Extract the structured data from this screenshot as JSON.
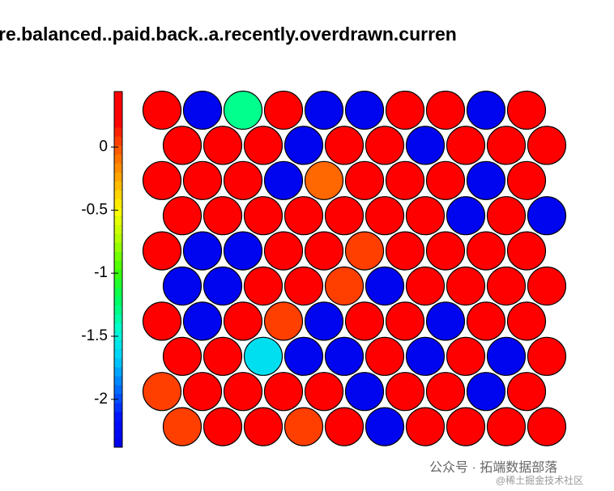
{
  "chart_data": {
    "type": "hexgrid",
    "title": "re.balanced..paid.back..a.recently.overdrawn.curren",
    "values": [
      [
        0.3,
        -2.3,
        -1.3,
        0.3,
        -2.3,
        -2.3,
        0.3,
        0.3,
        -2.3,
        0.3
      ],
      [
        0.3,
        0.3,
        0.3,
        -2.3,
        0.3,
        0.3,
        -2.3,
        0.3,
        0.3,
        0.3
      ],
      [
        0.3,
        0.3,
        0.3,
        -2.3,
        -0.05,
        0.3,
        0.3,
        0.3,
        -2.3,
        0.3
      ],
      [
        0.3,
        0.3,
        0.3,
        0.3,
        0.3,
        0.3,
        0.3,
        -2.3,
        0.3,
        -2.3
      ],
      [
        0.3,
        -2.3,
        -2.3,
        0.3,
        0.3,
        0.05,
        0.3,
        0.3,
        0.3,
        0.3
      ],
      [
        -2.3,
        -2.3,
        0.3,
        0.3,
        0.05,
        -2.3,
        0.3,
        0.3,
        0.3,
        0.3
      ],
      [
        0.3,
        -2.3,
        0.3,
        0.05,
        -2.3,
        0.3,
        0.3,
        -2.3,
        0.3,
        0.3
      ],
      [
        0.3,
        0.3,
        -1.6,
        -2.3,
        -2.3,
        0.3,
        -2.3,
        0.3,
        -2.3,
        0.3
      ],
      [
        0.05,
        0.3,
        0.3,
        0.3,
        0.3,
        -2.3,
        0.3,
        0.3,
        -2.3,
        0.3
      ],
      [
        0.05,
        0.3,
        0.3,
        0.05,
        0.3,
        -2.3,
        0.3,
        0.3,
        0.3,
        0.3
      ]
    ],
    "colormap": [
      "#0000e8",
      "#0010ff",
      "#0070ff",
      "#00d0ff",
      "#00ffd0",
      "#00ff60",
      "#40ff00",
      "#b0ff00",
      "#ffff00",
      "#ffb000",
      "#ff6000",
      "#ff0000",
      "#ff0000"
    ],
    "ylim": [
      -2.38,
      0.44
    ],
    "yticks": [
      0,
      -0.5,
      -1,
      -1.5,
      -2
    ],
    "watermark": [
      "公众号 · 拓端数据部落",
      "@稀土掘金技术社区"
    ]
  }
}
